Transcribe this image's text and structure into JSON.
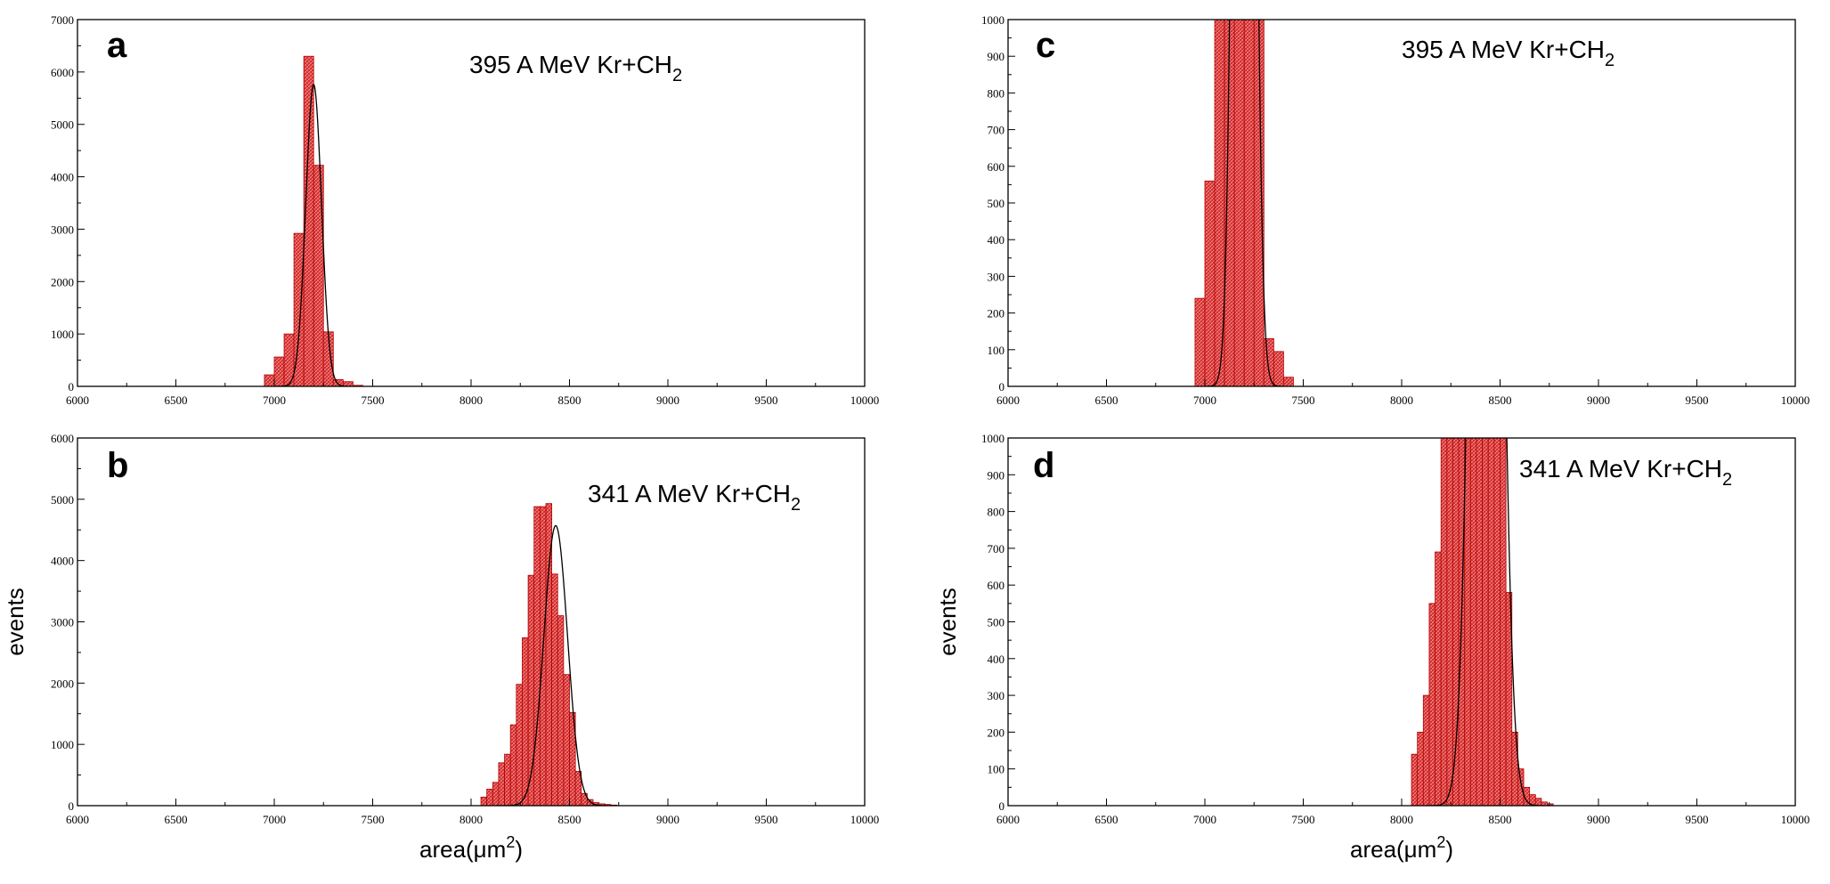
{
  "colors": {
    "bar_fill": "#e23a3a",
    "bar_stroke": "#b00000",
    "fit_line": "#000000",
    "frame": "#000000"
  },
  "chart_data": [
    {
      "type": "bar",
      "panel": "a",
      "annotation": "395 A MeV Kr+CH",
      "annotation_sub": "2",
      "xlabel": "",
      "xlabel_sup": "",
      "xlabel_end": "",
      "ylabel": "",
      "xlim": [
        6000,
        10000
      ],
      "ylim": [
        0,
        7000
      ],
      "xticks": [
        6000,
        6500,
        7000,
        7500,
        8000,
        8500,
        9000,
        9500,
        10000
      ],
      "yticks": [
        0,
        1000,
        2000,
        3000,
        4000,
        5000,
        6000,
        7000
      ],
      "bin_width": 50,
      "bins": [
        [
          6950,
          220
        ],
        [
          7000,
          560
        ],
        [
          7050,
          1000
        ],
        [
          7100,
          2920
        ],
        [
          7150,
          6300
        ],
        [
          7200,
          4220
        ],
        [
          7250,
          1040
        ],
        [
          7300,
          130
        ],
        [
          7350,
          90
        ],
        [
          7400,
          20
        ]
      ],
      "fit": {
        "mean": 7200,
        "sigma": 40,
        "amplitude": 5760
      }
    },
    {
      "type": "bar",
      "panel": "b",
      "annotation": "341 A MeV Kr+CH",
      "annotation_sub": "2",
      "xlabel": "area(μm",
      "xlabel_sup": "2",
      "xlabel_end": ")",
      "ylabel": "events",
      "xlim": [
        6000,
        10000
      ],
      "ylim": [
        0,
        6000
      ],
      "xticks": [
        6000,
        6500,
        7000,
        7500,
        8000,
        8500,
        9000,
        9500,
        10000
      ],
      "yticks": [
        0,
        1000,
        2000,
        3000,
        4000,
        5000,
        6000
      ],
      "bin_width": 30,
      "bins": [
        [
          8050,
          140
        ],
        [
          8080,
          270
        ],
        [
          8110,
          380
        ],
        [
          8140,
          700
        ],
        [
          8170,
          840
        ],
        [
          8200,
          1320
        ],
        [
          8230,
          1980
        ],
        [
          8260,
          2740
        ],
        [
          8290,
          3760
        ],
        [
          8320,
          4880
        ],
        [
          8350,
          4880
        ],
        [
          8380,
          4930
        ],
        [
          8410,
          3780
        ],
        [
          8440,
          3100
        ],
        [
          8470,
          2140
        ],
        [
          8500,
          1520
        ],
        [
          8530,
          560
        ],
        [
          8560,
          200
        ],
        [
          8590,
          100
        ],
        [
          8620,
          50
        ],
        [
          8650,
          30
        ],
        [
          8680,
          20
        ],
        [
          8710,
          10
        ]
      ],
      "fit": {
        "mean": 8430,
        "sigma": 60,
        "amplitude": 4570
      }
    },
    {
      "type": "bar",
      "panel": "c",
      "annotation": "395 A MeV Kr+CH",
      "annotation_sub": "2",
      "xlabel": "",
      "xlabel_sup": "",
      "xlabel_end": "",
      "ylabel": "",
      "xlim": [
        6000,
        10000
      ],
      "ylim": [
        0,
        1000
      ],
      "xticks": [
        6000,
        6500,
        7000,
        7500,
        8000,
        8500,
        9000,
        9500,
        10000
      ],
      "yticks": [
        0,
        100,
        200,
        300,
        400,
        500,
        600,
        700,
        800,
        900,
        1000
      ],
      "bin_width": 50,
      "bins": [
        [
          6950,
          240
        ],
        [
          7000,
          560
        ],
        [
          7050,
          1000
        ],
        [
          7100,
          2920
        ],
        [
          7150,
          6300
        ],
        [
          7200,
          4220
        ],
        [
          7250,
          1040
        ],
        [
          7300,
          130
        ],
        [
          7350,
          95
        ],
        [
          7400,
          25
        ]
      ],
      "fit": {
        "mean": 7200,
        "sigma": 40,
        "amplitude": 5760
      }
    },
    {
      "type": "bar",
      "panel": "d",
      "annotation": "341 A MeV Kr+CH",
      "annotation_sub": "2",
      "xlabel": "area(μm",
      "xlabel_sup": "2",
      "xlabel_end": ")",
      "ylabel": "events",
      "xlim": [
        6000,
        10000
      ],
      "ylim": [
        0,
        1000
      ],
      "xticks": [
        6000,
        6500,
        7000,
        7500,
        8000,
        8500,
        9000,
        9500,
        10000
      ],
      "yticks": [
        0,
        100,
        200,
        300,
        400,
        500,
        600,
        700,
        800,
        900,
        1000
      ],
      "bin_width": 30,
      "bins": [
        [
          8050,
          140
        ],
        [
          8080,
          200
        ],
        [
          8110,
          300
        ],
        [
          8140,
          550
        ],
        [
          8170,
          690
        ],
        [
          8200,
          1320
        ],
        [
          8230,
          1980
        ],
        [
          8260,
          2740
        ],
        [
          8290,
          3760
        ],
        [
          8320,
          4880
        ],
        [
          8350,
          4880
        ],
        [
          8380,
          4930
        ],
        [
          8410,
          3780
        ],
        [
          8440,
          3100
        ],
        [
          8470,
          2140
        ],
        [
          8500,
          1520
        ],
        [
          8530,
          580
        ],
        [
          8560,
          200
        ],
        [
          8590,
          100
        ],
        [
          8620,
          50
        ],
        [
          8650,
          30
        ],
        [
          8680,
          20
        ],
        [
          8710,
          10
        ],
        [
          8740,
          5
        ]
      ],
      "fit": {
        "mean": 8430,
        "sigma": 60,
        "amplitude": 4570
      }
    }
  ]
}
